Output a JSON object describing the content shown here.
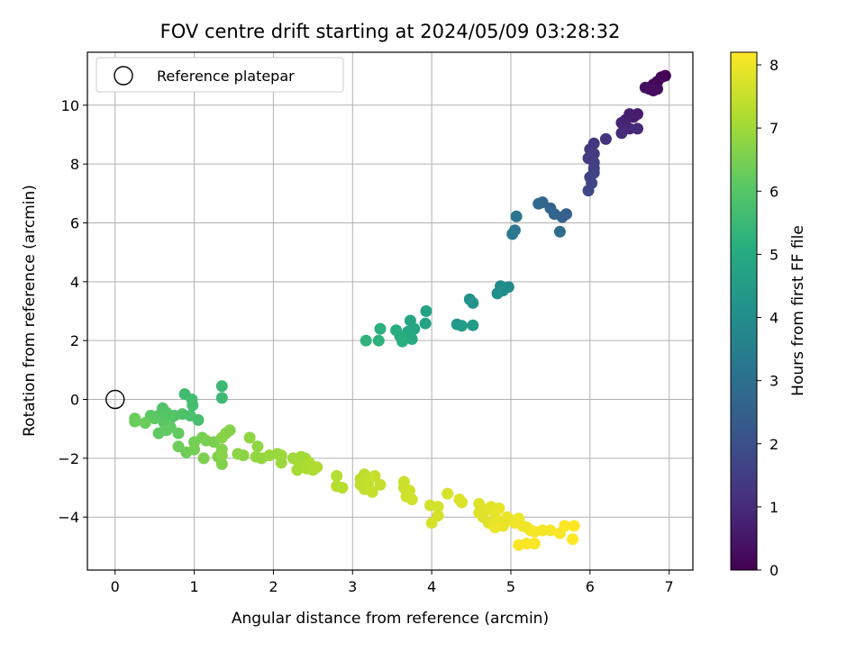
{
  "chart_data": {
    "type": "scatter",
    "title": "FOV centre drift starting at 2024/05/09 03:28:32",
    "xlabel": "Angular distance from reference (arcmin)",
    "ylabel": "Rotation from reference (arcmin)",
    "xlim": [
      -0.35,
      7.3
    ],
    "ylim": [
      -5.8,
      11.8
    ],
    "xticks": [
      "0",
      "1",
      "2",
      "3",
      "4",
      "5",
      "6",
      "7"
    ],
    "yticks": [
      "−4",
      "−2",
      "0",
      "2",
      "4",
      "6",
      "8",
      "10"
    ],
    "grid": true,
    "legend": {
      "placement": "top-left",
      "entries": [
        "Reference platepar"
      ]
    },
    "reference_point": {
      "x": 0,
      "y": 0
    },
    "colorbar": {
      "label": "Hours from first FF file",
      "range": [
        0,
        8.2
      ],
      "ticks": [
        "0",
        "1",
        "2",
        "3",
        "4",
        "5",
        "6",
        "7",
        "8"
      ],
      "colormap": "viridis"
    },
    "series": [
      {
        "values": [
          {
            "x": 6.95,
            "y": 11.0,
            "c": 0.0
          },
          {
            "x": 6.9,
            "y": 10.95,
            "c": 0.05
          },
          {
            "x": 6.85,
            "y": 10.8,
            "c": 0.1
          },
          {
            "x": 6.8,
            "y": 10.7,
            "c": 0.15
          },
          {
            "x": 6.85,
            "y": 10.55,
            "c": 0.2
          },
          {
            "x": 6.75,
            "y": 10.55,
            "c": 0.25
          },
          {
            "x": 6.7,
            "y": 10.6,
            "c": 0.3
          },
          {
            "x": 6.8,
            "y": 10.5,
            "c": 0.3
          },
          {
            "x": 6.6,
            "y": 9.7,
            "c": 0.6
          },
          {
            "x": 6.55,
            "y": 9.6,
            "c": 0.65
          },
          {
            "x": 6.5,
            "y": 9.7,
            "c": 0.7
          },
          {
            "x": 6.45,
            "y": 9.5,
            "c": 0.75
          },
          {
            "x": 6.45,
            "y": 9.3,
            "c": 0.8
          },
          {
            "x": 6.4,
            "y": 9.4,
            "c": 0.85
          },
          {
            "x": 6.5,
            "y": 9.2,
            "c": 0.9
          },
          {
            "x": 6.4,
            "y": 9.05,
            "c": 0.95
          },
          {
            "x": 6.6,
            "y": 9.2,
            "c": 0.95
          },
          {
            "x": 6.2,
            "y": 8.85,
            "c": 1.2
          },
          {
            "x": 6.05,
            "y": 8.7,
            "c": 1.3
          },
          {
            "x": 6.0,
            "y": 8.5,
            "c": 1.35
          },
          {
            "x": 6.05,
            "y": 8.35,
            "c": 1.4
          },
          {
            "x": 5.98,
            "y": 8.2,
            "c": 1.45
          },
          {
            "x": 6.05,
            "y": 8.05,
            "c": 1.5
          },
          {
            "x": 6.05,
            "y": 7.85,
            "c": 1.55
          },
          {
            "x": 6.05,
            "y": 7.7,
            "c": 1.6
          },
          {
            "x": 6.0,
            "y": 7.55,
            "c": 1.65
          },
          {
            "x": 6.02,
            "y": 7.35,
            "c": 1.7
          },
          {
            "x": 5.98,
            "y": 7.1,
            "c": 1.75
          },
          {
            "x": 5.7,
            "y": 6.3,
            "c": 2.5
          },
          {
            "x": 5.65,
            "y": 6.2,
            "c": 2.55
          },
          {
            "x": 5.55,
            "y": 6.3,
            "c": 2.6
          },
          {
            "x": 5.5,
            "y": 6.5,
            "c": 2.65
          },
          {
            "x": 5.4,
            "y": 6.7,
            "c": 2.7
          },
          {
            "x": 5.35,
            "y": 6.65,
            "c": 2.75
          },
          {
            "x": 5.62,
            "y": 5.7,
            "c": 2.9
          },
          {
            "x": 5.07,
            "y": 6.22,
            "c": 3.2
          },
          {
            "x": 5.05,
            "y": 5.75,
            "c": 3.25
          },
          {
            "x": 5.02,
            "y": 5.62,
            "c": 3.3
          },
          {
            "x": 4.97,
            "y": 3.82,
            "c": 3.9
          },
          {
            "x": 4.87,
            "y": 3.85,
            "c": 3.95
          },
          {
            "x": 4.9,
            "y": 3.7,
            "c": 4.0
          },
          {
            "x": 4.83,
            "y": 3.6,
            "c": 4.05
          },
          {
            "x": 4.48,
            "y": 3.4,
            "c": 4.15
          },
          {
            "x": 4.52,
            "y": 3.28,
            "c": 4.2
          },
          {
            "x": 4.32,
            "y": 2.55,
            "c": 4.4
          },
          {
            "x": 4.38,
            "y": 2.5,
            "c": 4.45
          },
          {
            "x": 4.52,
            "y": 2.52,
            "c": 4.5
          },
          {
            "x": 3.93,
            "y": 3.0,
            "c": 4.7
          },
          {
            "x": 3.92,
            "y": 2.58,
            "c": 4.75
          },
          {
            "x": 3.73,
            "y": 2.68,
            "c": 4.8
          },
          {
            "x": 3.78,
            "y": 2.4,
            "c": 4.85
          },
          {
            "x": 3.7,
            "y": 2.3,
            "c": 4.9
          },
          {
            "x": 3.65,
            "y": 2.1,
            "c": 4.95
          },
          {
            "x": 3.75,
            "y": 2.05,
            "c": 5.0
          },
          {
            "x": 3.55,
            "y": 2.35,
            "c": 5.05
          },
          {
            "x": 3.6,
            "y": 2.15,
            "c": 5.1
          },
          {
            "x": 3.63,
            "y": 1.97,
            "c": 5.15
          },
          {
            "x": 3.35,
            "y": 2.4,
            "c": 5.2
          },
          {
            "x": 3.33,
            "y": 2.0,
            "c": 5.25
          },
          {
            "x": 3.17,
            "y": 2.0,
            "c": 5.3
          },
          {
            "x": 1.35,
            "y": 0.45,
            "c": 5.5
          },
          {
            "x": 1.35,
            "y": 0.05,
            "c": 5.55
          },
          {
            "x": 0.88,
            "y": 0.18,
            "c": 5.6
          },
          {
            "x": 0.97,
            "y": 0.0,
            "c": 5.65
          },
          {
            "x": 0.98,
            "y": -0.2,
            "c": 5.7
          },
          {
            "x": 1.05,
            "y": -0.7,
            "c": 5.75
          },
          {
            "x": 0.95,
            "y": -0.55,
            "c": 5.8
          },
          {
            "x": 0.85,
            "y": -0.5,
            "c": 5.85
          },
          {
            "x": 0.75,
            "y": -0.55,
            "c": 5.9
          },
          {
            "x": 0.6,
            "y": -0.3,
            "c": 5.9
          },
          {
            "x": 0.65,
            "y": -0.45,
            "c": 5.95
          },
          {
            "x": 0.55,
            "y": -0.55,
            "c": 6.0
          },
          {
            "x": 0.7,
            "y": -0.65,
            "c": 6.0
          },
          {
            "x": 0.62,
            "y": -0.8,
            "c": 6.05
          },
          {
            "x": 0.5,
            "y": -0.65,
            "c": 6.1
          },
          {
            "x": 0.45,
            "y": -0.55,
            "c": 6.1
          },
          {
            "x": 0.7,
            "y": -0.95,
            "c": 6.15
          },
          {
            "x": 0.55,
            "y": -1.15,
            "c": 6.15
          },
          {
            "x": 0.8,
            "y": -1.15,
            "c": 6.2
          },
          {
            "x": 0.65,
            "y": -1.05,
            "c": 6.2
          },
          {
            "x": 0.25,
            "y": -0.65,
            "c": 6.25
          },
          {
            "x": 0.25,
            "y": -0.75,
            "c": 6.3
          },
          {
            "x": 0.38,
            "y": -0.8,
            "c": 6.3
          },
          {
            "x": 0.8,
            "y": -1.6,
            "c": 6.35
          },
          {
            "x": 0.9,
            "y": -1.8,
            "c": 6.35
          },
          {
            "x": 1.0,
            "y": -1.45,
            "c": 6.4
          },
          {
            "x": 1.0,
            "y": -1.7,
            "c": 6.45
          },
          {
            "x": 1.1,
            "y": -1.3,
            "c": 6.45
          },
          {
            "x": 1.15,
            "y": -1.4,
            "c": 6.5
          },
          {
            "x": 1.25,
            "y": -1.45,
            "c": 6.5
          },
          {
            "x": 1.12,
            "y": -2.0,
            "c": 6.55
          },
          {
            "x": 1.3,
            "y": -1.95,
            "c": 6.55
          },
          {
            "x": 1.35,
            "y": -1.7,
            "c": 6.6
          },
          {
            "x": 1.35,
            "y": -2.2,
            "c": 6.6
          },
          {
            "x": 1.4,
            "y": -1.15,
            "c": 6.65
          },
          {
            "x": 1.45,
            "y": -1.05,
            "c": 6.65
          },
          {
            "x": 1.35,
            "y": -1.3,
            "c": 6.7
          },
          {
            "x": 1.35,
            "y": -1.9,
            "c": 6.7
          },
          {
            "x": 1.55,
            "y": -1.85,
            "c": 6.75
          },
          {
            "x": 1.62,
            "y": -1.9,
            "c": 6.75
          },
          {
            "x": 1.7,
            "y": -1.3,
            "c": 6.8
          },
          {
            "x": 1.8,
            "y": -1.6,
            "c": 6.8
          },
          {
            "x": 1.78,
            "y": -1.95,
            "c": 6.85
          },
          {
            "x": 1.85,
            "y": -2.0,
            "c": 6.85
          },
          {
            "x": 1.95,
            "y": -1.9,
            "c": 6.9
          },
          {
            "x": 2.05,
            "y": -1.85,
            "c": 6.9
          },
          {
            "x": 2.1,
            "y": -1.9,
            "c": 6.95
          },
          {
            "x": 2.1,
            "y": -2.15,
            "c": 6.95
          },
          {
            "x": 2.25,
            "y": -2.0,
            "c": 7.0
          },
          {
            "x": 2.3,
            "y": -2.05,
            "c": 7.0
          },
          {
            "x": 2.35,
            "y": -1.95,
            "c": 7.05
          },
          {
            "x": 2.4,
            "y": -2.0,
            "c": 7.05
          },
          {
            "x": 2.3,
            "y": -2.4,
            "c": 7.1
          },
          {
            "x": 2.35,
            "y": -2.25,
            "c": 7.1
          },
          {
            "x": 2.42,
            "y": -2.35,
            "c": 7.15
          },
          {
            "x": 2.45,
            "y": -2.15,
            "c": 7.15
          },
          {
            "x": 2.5,
            "y": -2.4,
            "c": 7.2
          },
          {
            "x": 2.55,
            "y": -2.3,
            "c": 7.2
          },
          {
            "x": 2.8,
            "y": -2.6,
            "c": 7.25
          },
          {
            "x": 2.8,
            "y": -2.95,
            "c": 7.3
          },
          {
            "x": 2.87,
            "y": -3.0,
            "c": 7.3
          },
          {
            "x": 3.1,
            "y": -2.7,
            "c": 7.35
          },
          {
            "x": 3.15,
            "y": -2.55,
            "c": 7.35
          },
          {
            "x": 3.1,
            "y": -2.9,
            "c": 7.4
          },
          {
            "x": 3.15,
            "y": -3.05,
            "c": 7.4
          },
          {
            "x": 3.2,
            "y": -2.8,
            "c": 7.45
          },
          {
            "x": 3.2,
            "y": -3.0,
            "c": 7.45
          },
          {
            "x": 3.25,
            "y": -3.15,
            "c": 7.5
          },
          {
            "x": 3.28,
            "y": -2.6,
            "c": 7.5
          },
          {
            "x": 3.35,
            "y": -2.9,
            "c": 7.5
          },
          {
            "x": 3.65,
            "y": -2.8,
            "c": 7.55
          },
          {
            "x": 3.65,
            "y": -3.0,
            "c": 7.55
          },
          {
            "x": 3.72,
            "y": -3.1,
            "c": 7.6
          },
          {
            "x": 3.75,
            "y": -3.4,
            "c": 7.6
          },
          {
            "x": 3.68,
            "y": -3.3,
            "c": 7.6
          },
          {
            "x": 3.98,
            "y": -3.6,
            "c": 7.65
          },
          {
            "x": 4.08,
            "y": -3.65,
            "c": 7.65
          },
          {
            "x": 4.08,
            "y": -3.95,
            "c": 7.7
          },
          {
            "x": 4.0,
            "y": -4.2,
            "c": 7.7
          },
          {
            "x": 4.2,
            "y": -3.2,
            "c": 7.7
          },
          {
            "x": 4.35,
            "y": -3.4,
            "c": 7.75
          },
          {
            "x": 4.38,
            "y": -3.5,
            "c": 7.75
          },
          {
            "x": 4.6,
            "y": -3.55,
            "c": 7.8
          },
          {
            "x": 4.6,
            "y": -3.85,
            "c": 7.8
          },
          {
            "x": 4.65,
            "y": -4.0,
            "c": 7.8
          },
          {
            "x": 4.7,
            "y": -3.75,
            "c": 7.85
          },
          {
            "x": 4.75,
            "y": -3.65,
            "c": 7.85
          },
          {
            "x": 4.72,
            "y": -4.2,
            "c": 7.85
          },
          {
            "x": 4.8,
            "y": -3.85,
            "c": 7.9
          },
          {
            "x": 4.82,
            "y": -4.1,
            "c": 7.9
          },
          {
            "x": 4.85,
            "y": -3.7,
            "c": 7.9
          },
          {
            "x": 4.9,
            "y": -4.3,
            "c": 7.95
          },
          {
            "x": 4.95,
            "y": -4.0,
            "c": 7.95
          },
          {
            "x": 5.0,
            "y": -4.1,
            "c": 7.95
          },
          {
            "x": 4.8,
            "y": -4.35,
            "c": 8.0
          },
          {
            "x": 5.05,
            "y": -4.2,
            "c": 8.0
          },
          {
            "x": 5.1,
            "y": -4.05,
            "c": 8.0
          },
          {
            "x": 5.15,
            "y": -4.3,
            "c": 8.05
          },
          {
            "x": 5.2,
            "y": -4.35,
            "c": 8.05
          },
          {
            "x": 5.25,
            "y": -4.45,
            "c": 8.05
          },
          {
            "x": 5.3,
            "y": -4.5,
            "c": 8.1
          },
          {
            "x": 5.4,
            "y": -4.45,
            "c": 8.1
          },
          {
            "x": 5.5,
            "y": -4.45,
            "c": 8.1
          },
          {
            "x": 5.1,
            "y": -4.95,
            "c": 8.15
          },
          {
            "x": 5.2,
            "y": -4.9,
            "c": 8.15
          },
          {
            "x": 5.3,
            "y": -4.9,
            "c": 8.15
          },
          {
            "x": 5.62,
            "y": -4.55,
            "c": 8.15
          },
          {
            "x": 5.68,
            "y": -4.3,
            "c": 8.2
          },
          {
            "x": 5.8,
            "y": -4.3,
            "c": 8.2
          },
          {
            "x": 5.78,
            "y": -4.75,
            "c": 8.2
          }
        ]
      }
    ]
  }
}
